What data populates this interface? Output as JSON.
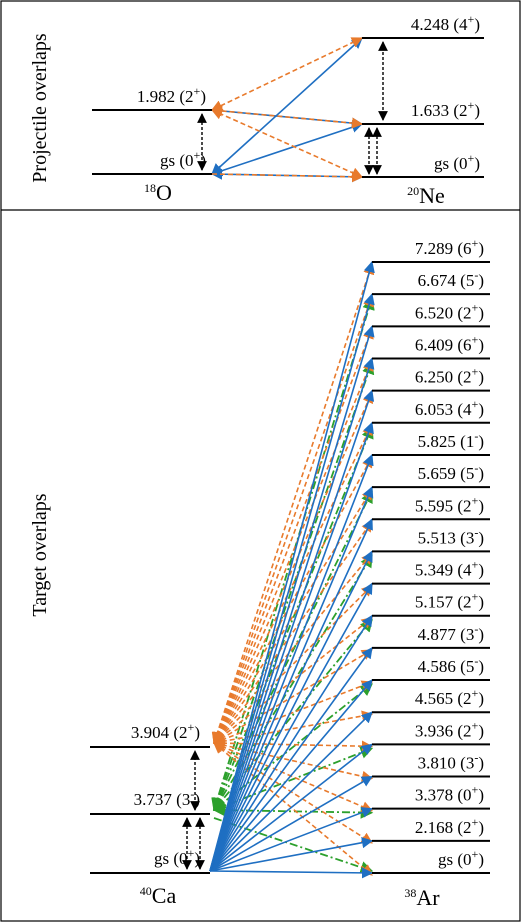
{
  "projectile": {
    "section_label": "Projectile overlaps",
    "left_nucleus": {
      "mass": "18",
      "symbol": "O"
    },
    "right_nucleus": {
      "mass": "20",
      "symbol": "Ne"
    },
    "left_levels": [
      {
        "energy": "gs",
        "jp": "0",
        "parity": "+"
      },
      {
        "energy": "1.982",
        "jp": "2",
        "parity": "+"
      }
    ],
    "right_levels": [
      {
        "energy": "gs",
        "jp": "0",
        "parity": "+"
      },
      {
        "energy": "1.633",
        "jp": "2",
        "parity": "+"
      },
      {
        "energy": "4.248",
        "jp": "4",
        "parity": "+"
      }
    ]
  },
  "target": {
    "section_label": "Target overlaps",
    "left_nucleus": {
      "mass": "40",
      "symbol": "Ca"
    },
    "right_nucleus": {
      "mass": "38",
      "symbol": "Ar"
    },
    "left_levels": [
      {
        "energy": "gs",
        "jp": "0",
        "parity": "+"
      },
      {
        "energy": "3.737",
        "jp": "3",
        "parity": "-"
      },
      {
        "energy": "3.904",
        "jp": "2",
        "parity": "+"
      }
    ],
    "right_levels": [
      {
        "energy": "gs",
        "jp": "0",
        "parity": "+"
      },
      {
        "energy": "2.168",
        "jp": "2",
        "parity": "+"
      },
      {
        "energy": "3.378",
        "jp": "0",
        "parity": "+"
      },
      {
        "energy": "3.810",
        "jp": "3",
        "parity": "-"
      },
      {
        "energy": "3.936",
        "jp": "2",
        "parity": "+"
      },
      {
        "energy": "4.565",
        "jp": "2",
        "parity": "+"
      },
      {
        "energy": "4.586",
        "jp": "5",
        "parity": "-"
      },
      {
        "energy": "4.877",
        "jp": "3",
        "parity": "-"
      },
      {
        "energy": "5.157",
        "jp": "2",
        "parity": "+"
      },
      {
        "energy": "5.349",
        "jp": "4",
        "parity": "+"
      },
      {
        "energy": "5.513",
        "jp": "3",
        "parity": "-"
      },
      {
        "energy": "5.595",
        "jp": "2",
        "parity": "+"
      },
      {
        "energy": "5.659",
        "jp": "5",
        "parity": "-"
      },
      {
        "energy": "5.825",
        "jp": "1",
        "parity": "-"
      },
      {
        "energy": "6.053",
        "jp": "4",
        "parity": "+"
      },
      {
        "energy": "6.250",
        "jp": "2",
        "parity": "+"
      },
      {
        "energy": "6.409",
        "jp": "6",
        "parity": "+"
      },
      {
        "energy": "6.520",
        "jp": "2",
        "parity": "+"
      },
      {
        "energy": "6.674",
        "jp": "5",
        "parity": "-"
      },
      {
        "energy": "7.289",
        "jp": "6",
        "parity": "+"
      }
    ]
  },
  "colors": {
    "blue_solid": "#1f6fc2",
    "orange_dashed": "#e87a2c",
    "green_dashdot": "#2ca02c",
    "black": "#000000"
  }
}
